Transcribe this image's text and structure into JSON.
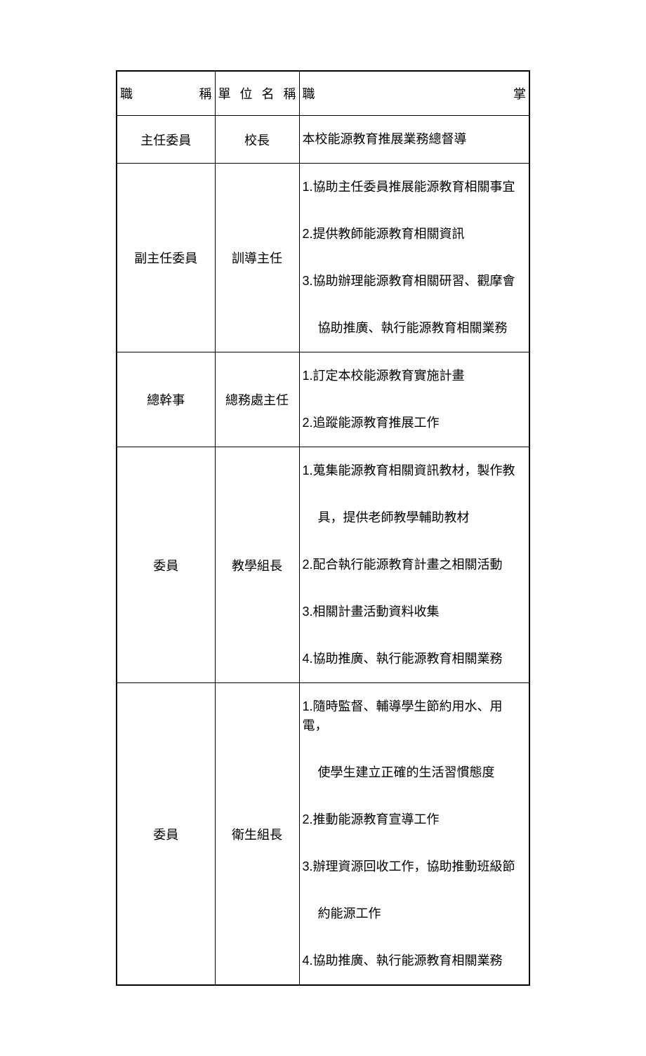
{
  "table": {
    "headers": {
      "position": "職　　　稱",
      "unit": "單 位 名 稱",
      "duties": "職　　　　　　　　　掌"
    },
    "rows": [
      {
        "position": "主任委員",
        "unit": "校長",
        "duties": [
          "本校能源教育推展業務總督導"
        ]
      },
      {
        "position": "副主任委員",
        "unit": "訓導主任",
        "duties": [
          "1.協助主任委員推展能源教育相關事宜",
          "2.提供教師能源教育相關資訊",
          "3.協助辦理能源教育相關研習、觀摩會",
          "　協助推廣、執行能源教育相關業務"
        ]
      },
      {
        "position": "總幹事",
        "unit": "總務處主任",
        "duties": [
          "1.訂定本校能源教育實施計畫",
          "2.追蹤能源教育推展工作"
        ]
      },
      {
        "position": "委員",
        "unit": "教學組長",
        "duties": [
          "1.蒐集能源教育相關資訊教材，製作教",
          "　具，提供老師教學輔助教材",
          "2.配合執行能源教育計畫之相關活動",
          "3.相關計畫活動資料收集",
          "4.協助推廣、執行能源教育相關業務"
        ]
      },
      {
        "position": "委員",
        "unit": "衛生組長",
        "duties": [
          "1.隨時監督、輔導學生節約用水、用電，",
          "　使學生建立正確的生活習慣態度",
          "2.推動能源教育宣導工作",
          "3.辦理資源回收工作，協助推動班級節",
          "　約能源工作",
          "4.協助推廣、執行能源教育相關業務"
        ]
      }
    ]
  },
  "styling": {
    "border_color": "#000000",
    "background_color": "#ffffff",
    "text_color": "#000000",
    "font_size": 18,
    "col1_width": 140,
    "col2_width": 120
  }
}
